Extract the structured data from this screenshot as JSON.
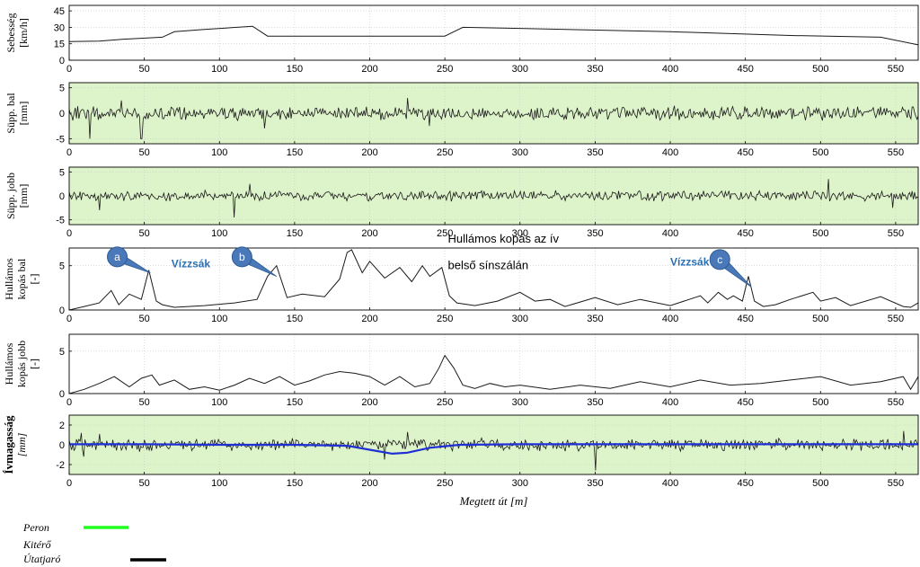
{
  "colors": {
    "panel_green": "#ddf3c9",
    "signal": "#1a1a1a",
    "trend_blue": "#1f2fd6",
    "callout": "#4a78b8",
    "annotation_blue": "#2b6fb3",
    "peron": "#22ff22",
    "kitero": "#22ff22",
    "utatjaro": "#000000"
  },
  "chart_data": [
    {
      "type": "line",
      "ylabel": [
        "Sebesség",
        "[km/h]"
      ],
      "ylim": [
        0,
        50
      ],
      "yticks": [
        "45",
        "30",
        "15",
        "0"
      ],
      "xlim": [
        0,
        565
      ],
      "xticks": [
        "0",
        "50",
        "100",
        "150",
        "200",
        "250",
        "300",
        "350",
        "400",
        "450",
        "500",
        "550"
      ],
      "background": "white",
      "grid": true,
      "series": [
        {
          "x": [
            0,
            20,
            35,
            62,
            70,
            90,
            122,
            132,
            250,
            262,
            300,
            400,
            480,
            540,
            565
          ],
          "y": [
            17,
            17.5,
            19,
            21,
            26,
            28,
            31,
            22,
            22,
            30,
            29,
            26,
            22.5,
            21,
            14
          ]
        }
      ]
    },
    {
      "type": "line",
      "ylabel": [
        "Süpp. bal",
        "[mm]"
      ],
      "ylim": [
        -6,
        6
      ],
      "yticks": [
        "5",
        "0",
        "-5"
      ],
      "xlim": [
        0,
        565
      ],
      "xticks": [
        "0",
        "50",
        "100",
        "150",
        "200",
        "250",
        "300",
        "350",
        "400",
        "450",
        "500",
        "550"
      ],
      "background": "green",
      "grid": true,
      "series": [
        {
          "signal": "noise",
          "amplitude": 1.5,
          "spikes": [
            [
              14,
              -5
            ],
            [
              48,
              -5
            ],
            [
              35,
              2.5
            ],
            [
              130,
              -3
            ],
            [
              225,
              3
            ],
            [
              240,
              -2.5
            ]
          ]
        }
      ]
    },
    {
      "type": "line",
      "ylabel": [
        "Süpp. jobb",
        "[mm]"
      ],
      "ylim": [
        -6,
        6
      ],
      "yticks": [
        "5",
        "0",
        "-5"
      ],
      "xlim": [
        0,
        565
      ],
      "xticks": [
        "0",
        "50",
        "100",
        "150",
        "200",
        "250",
        "300",
        "350",
        "400",
        "450",
        "500",
        "550"
      ],
      "background": "green",
      "grid": true,
      "series": [
        {
          "signal": "noise",
          "amplitude": 1.2,
          "spikes": [
            [
              20,
              -3
            ],
            [
              110,
              -4.5
            ],
            [
              120,
              2.5
            ],
            [
              505,
              3.5
            ],
            [
              548,
              -2.5
            ]
          ]
        }
      ]
    },
    {
      "type": "line",
      "ylabel": [
        "Hullámos",
        "kopás bal",
        "[-]"
      ],
      "ylim": [
        0,
        7
      ],
      "yticks": [
        "5",
        "0"
      ],
      "xlim": [
        0,
        565
      ],
      "xticks": [
        "0",
        "50",
        "100",
        "150",
        "200",
        "250",
        "300",
        "350",
        "400",
        "450",
        "500",
        "550"
      ],
      "background": "white",
      "grid": true,
      "series": [
        {
          "x": [
            0,
            10,
            20,
            28,
            33,
            40,
            48,
            53,
            58,
            62,
            70,
            90,
            110,
            125,
            132,
            138,
            145,
            155,
            170,
            180,
            185,
            188,
            195,
            200,
            210,
            220,
            228,
            235,
            240,
            248,
            253,
            258,
            270,
            285,
            300,
            310,
            320,
            330,
            350,
            365,
            380,
            400,
            420,
            425,
            432,
            438,
            442,
            448,
            452,
            456,
            462,
            470,
            480,
            495,
            500,
            510,
            520,
            540,
            555,
            560,
            565
          ],
          "y": [
            0,
            0.4,
            0.8,
            2.2,
            0.6,
            1.8,
            1.2,
            4.5,
            1.0,
            0.6,
            0.3,
            0.5,
            0.8,
            1.2,
            3.8,
            5.0,
            1.4,
            1.8,
            1.5,
            3.5,
            6.5,
            6.8,
            4.2,
            5.5,
            3.6,
            4.8,
            3.2,
            5.0,
            3.8,
            4.8,
            1.6,
            0.8,
            0.5,
            1.0,
            2.0,
            1.0,
            1.2,
            0.4,
            1.4,
            0.6,
            1.2,
            0.5,
            1.6,
            0.8,
            2.0,
            1.2,
            1.6,
            1.0,
            3.8,
            1.0,
            0.4,
            0.6,
            1.2,
            2.0,
            1.0,
            1.4,
            0.5,
            1.5,
            0.4,
            0.3,
            0.8
          ]
        }
      ],
      "annotations": {
        "callouts": [
          {
            "label": "a",
            "x": 32,
            "y": 6.0,
            "target_x": 54,
            "target_y": 4.2
          },
          {
            "label": "b",
            "x": 115,
            "y": 6.0,
            "target_x": 138,
            "target_y": 3.8
          },
          {
            "label": "c",
            "x": 433,
            "y": 5.7,
            "target_x": 454,
            "target_y": 2.6
          }
        ],
        "texts": [
          {
            "text": "Vízzsák",
            "x": 68,
            "y": 4.8,
            "style": "blue"
          },
          {
            "text": "Vízzsák",
            "x": 400,
            "y": 5.0,
            "style": "blue"
          },
          {
            "text": "Hullámos kopás az ív",
            "x": 252,
            "y": 7.6,
            "style": "black"
          },
          {
            "text": "belső sínszálán",
            "x": 252,
            "y": 4.6,
            "style": "black"
          }
        ]
      }
    },
    {
      "type": "line",
      "ylabel": [
        "Hullámos",
        "kopás jobb",
        "[-]"
      ],
      "ylim": [
        0,
        7
      ],
      "yticks": [
        "5",
        "0"
      ],
      "xlim": [
        0,
        565
      ],
      "xticks": [
        "0",
        "50",
        "100",
        "150",
        "200",
        "250",
        "300",
        "350",
        "400",
        "450",
        "500",
        "550"
      ],
      "background": "white",
      "grid": true,
      "series": [
        {
          "x": [
            0,
            10,
            20,
            30,
            40,
            48,
            55,
            60,
            70,
            80,
            90,
            100,
            110,
            120,
            130,
            140,
            150,
            160,
            170,
            180,
            190,
            200,
            210,
            220,
            230,
            240,
            246,
            250,
            256,
            262,
            270,
            280,
            290,
            300,
            320,
            340,
            360,
            380,
            400,
            420,
            440,
            460,
            480,
            500,
            520,
            540,
            555,
            560,
            565
          ],
          "y": [
            0,
            0.5,
            1.2,
            2.0,
            0.8,
            1.8,
            2.2,
            1.0,
            1.6,
            0.5,
            0.8,
            0.4,
            1.0,
            1.8,
            1.2,
            2.0,
            1.0,
            1.5,
            2.2,
            2.6,
            2.4,
            2.0,
            1.0,
            2.0,
            0.8,
            1.2,
            3.0,
            4.5,
            3.0,
            1.0,
            0.6,
            1.2,
            0.8,
            1.0,
            0.5,
            1.0,
            0.6,
            1.4,
            0.8,
            1.6,
            1.0,
            1.2,
            1.6,
            2.0,
            1.0,
            1.4,
            2.0,
            0.5,
            2.0
          ]
        }
      ]
    },
    {
      "type": "line",
      "ylabel": [
        "Ívmagasság",
        "[mm]"
      ],
      "ylim": [
        -3,
        3
      ],
      "yticks": [
        "2",
        "0",
        "-2"
      ],
      "xlim": [
        0,
        565
      ],
      "xticks": [
        "0",
        "50",
        "100",
        "150",
        "200",
        "250",
        "300",
        "350",
        "400",
        "450",
        "500",
        "550"
      ],
      "xlabel": "Megtett út [m]",
      "background": "green",
      "grid": true,
      "series": [
        {
          "name": "",
          "signal": "noise",
          "amplitude": 0.7,
          "spikes": [
            [
              8,
              1.2
            ],
            [
              10,
              -1.2
            ],
            [
              20,
              1.1
            ],
            [
              210,
              -1.5
            ],
            [
              225,
              1.3
            ],
            [
              350,
              -2.6
            ],
            [
              555,
              1.4
            ]
          ]
        },
        {
          "x": [
            0,
            50,
            100,
            150,
            185,
            200,
            215,
            225,
            240,
            260,
            300,
            400,
            500,
            565
          ],
          "y": [
            0.05,
            0.05,
            0.0,
            0.0,
            -0.1,
            -0.5,
            -0.9,
            -0.8,
            -0.3,
            0.0,
            0.05,
            0.05,
            0.05,
            0.05
          ]
        }
      ]
    }
  ],
  "legend": [
    {
      "label": "Peron",
      "color": "#22ff22"
    },
    {
      "label": "Kitérő",
      "color": "#22ff22"
    },
    {
      "label": "Útatjaró",
      "color": "#000000"
    }
  ]
}
